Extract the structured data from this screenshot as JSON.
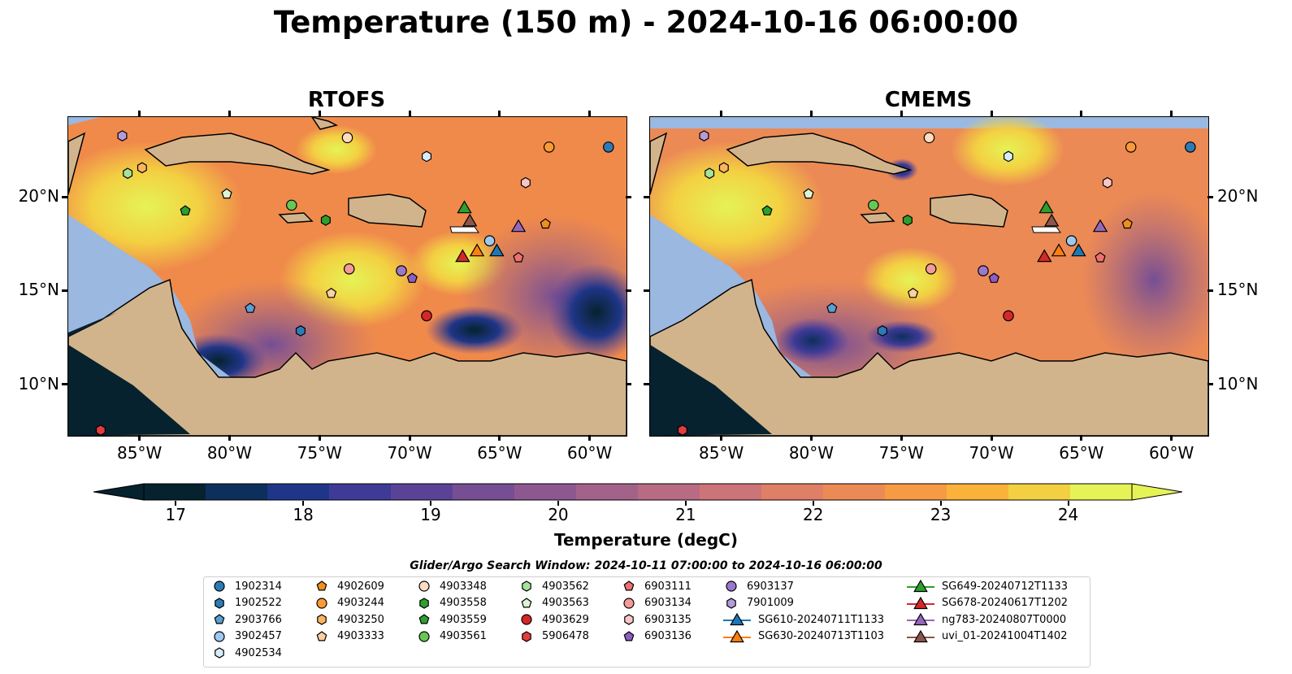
{
  "figure": {
    "title": "Temperature (150 m) - 2024-10-16 06:00:00",
    "panels": [
      {
        "title": "RTOFS"
      },
      {
        "title": "CMEMS"
      }
    ],
    "lon_ticks": [
      "85°W",
      "80°W",
      "75°W",
      "70°W",
      "65°W",
      "60°W"
    ],
    "lat_ticks": [
      "20°N",
      "15°N",
      "10°N"
    ],
    "extent": {
      "lon": [
        -89,
        -58
      ],
      "lat": [
        7.3,
        24.3
      ]
    },
    "land_color": "#d2b48c",
    "shallow_color": "#9ab8e0"
  },
  "colorbar": {
    "label": "Temperature (degC)",
    "ticks": [
      "17",
      "18",
      "19",
      "20",
      "21",
      "22",
      "23",
      "24"
    ],
    "range": [
      16.75,
      24.5
    ],
    "step": 0.5,
    "colors": [
      "#06222e",
      "#0d2f5c",
      "#1f3688",
      "#3e3a96",
      "#5a4397",
      "#754e94",
      "#8d5890",
      "#a3628a",
      "#b86b82",
      "#cc7478",
      "#df7f66",
      "#ec8a55",
      "#f69a44",
      "#fbb23a",
      "#f3d042",
      "#e5f356"
    ],
    "extend": "both"
  },
  "legend": {
    "title": "Glider/Argo Search Window: 2024-10-11 07:00:00 to 2024-10-16 06:00:00",
    "columns": [
      [
        {
          "label": "1902314",
          "marker": "circle",
          "color": "#2d7bb6"
        },
        {
          "label": "1902522",
          "marker": "hexagon",
          "color": "#2d7bb6"
        },
        {
          "label": "2903766",
          "marker": "pentagon",
          "color": "#5a9fd4"
        },
        {
          "label": "3902457",
          "marker": "circle",
          "color": "#9dc9ef"
        },
        {
          "label": "4902534",
          "marker": "hexagon",
          "color": "#d7ebfa"
        }
      ],
      [
        {
          "label": "4902609",
          "marker": "pentagon",
          "color": "#f28e1c"
        },
        {
          "label": "4903244",
          "marker": "circle",
          "color": "#fb9a35"
        },
        {
          "label": "4903250",
          "marker": "hexagon",
          "color": "#fdb45f"
        },
        {
          "label": "4903333",
          "marker": "pentagon",
          "color": "#fdd0a0"
        }
      ],
      [
        {
          "label": "4903348",
          "marker": "circle",
          "color": "#ffdcc0"
        },
        {
          "label": "4903558",
          "marker": "hexagon",
          "color": "#2ca02c"
        },
        {
          "label": "4903559",
          "marker": "pentagon",
          "color": "#2ca02c"
        },
        {
          "label": "4903561",
          "marker": "circle",
          "color": "#67c756"
        }
      ],
      [
        {
          "label": "4903562",
          "marker": "hexagon",
          "color": "#a7e29a"
        },
        {
          "label": "4903563",
          "marker": "pentagon",
          "color": "#dcf5d5"
        },
        {
          "label": "4903629",
          "marker": "circle",
          "color": "#d62728"
        },
        {
          "label": "5906478",
          "marker": "hexagon",
          "color": "#e23c3c"
        }
      ],
      [
        {
          "label": "6903111",
          "marker": "pentagon",
          "color": "#ee7070"
        },
        {
          "label": "6903134",
          "marker": "circle",
          "color": "#f59a9a"
        },
        {
          "label": "6903135",
          "marker": "hexagon",
          "color": "#f9c6c6"
        },
        {
          "label": "6903136",
          "marker": "pentagon",
          "color": "#8a5ec2"
        }
      ],
      [
        {
          "label": "6903137",
          "marker": "circle",
          "color": "#9b78cc"
        },
        {
          "label": "7901009",
          "marker": "hexagon",
          "color": "#b79ad8"
        },
        {
          "label": "SG610-20240711T1133",
          "marker": "triangle-line",
          "color": "#1f77b4"
        },
        {
          "label": "SG630-20240713T1103",
          "marker": "triangle-line",
          "color": "#ff7f0e"
        }
      ],
      [
        {
          "label": "SG649-20240712T1133",
          "marker": "triangle-line",
          "color": "#2ca02c"
        },
        {
          "label": "SG678-20240617T1202",
          "marker": "triangle-line",
          "color": "#d62728"
        },
        {
          "label": "ng783-20240807T0000",
          "marker": "triangle-line",
          "color": "#9467bd"
        },
        {
          "label": "uvi_01-20241004T1402",
          "marker": "triangle-line",
          "color": "#8c564b"
        }
      ]
    ]
  },
  "observations": [
    {
      "id": "1902314",
      "lon": -59.0,
      "lat": 22.7
    },
    {
      "id": "1902522",
      "lon": -76.1,
      "lat": 12.9
    },
    {
      "id": "2903766",
      "lon": -78.9,
      "lat": 14.1
    },
    {
      "id": "3902457",
      "lon": -65.6,
      "lat": 17.7
    },
    {
      "id": "4902534",
      "lon": -69.1,
      "lat": 22.2
    },
    {
      "id": "4902609",
      "lon": -62.5,
      "lat": 18.6
    },
    {
      "id": "4903244",
      "lon": -62.3,
      "lat": 22.7
    },
    {
      "id": "4903250",
      "lon": -84.9,
      "lat": 21.6
    },
    {
      "id": "4903333",
      "lon": -74.4,
      "lat": 14.9
    },
    {
      "id": "4903348",
      "lon": -73.5,
      "lat": 23.2
    },
    {
      "id": "4903558",
      "lon": -74.7,
      "lat": 18.8
    },
    {
      "id": "4903559",
      "lon": -82.5,
      "lat": 19.3
    },
    {
      "id": "4903561",
      "lon": -76.6,
      "lat": 19.6
    },
    {
      "id": "4903562",
      "lon": -85.7,
      "lat": 21.3
    },
    {
      "id": "4903563",
      "lon": -80.2,
      "lat": 20.2
    },
    {
      "id": "4903629",
      "lon": -69.1,
      "lat": 13.7
    },
    {
      "id": "5906478",
      "lon": -87.2,
      "lat": 7.6
    },
    {
      "id": "6903111",
      "lon": -64.0,
      "lat": 16.8
    },
    {
      "id": "6903134",
      "lon": -73.4,
      "lat": 16.2
    },
    {
      "id": "6903135",
      "lon": -63.6,
      "lat": 20.8
    },
    {
      "id": "6903136",
      "lon": -69.9,
      "lat": 15.7
    },
    {
      "id": "6903137",
      "lon": -70.5,
      "lat": 16.1
    },
    {
      "id": "7901009",
      "lon": -86.0,
      "lat": 23.3
    },
    {
      "id": "SG610-20240711T1133",
      "lon": -65.2,
      "lat": 17.1
    },
    {
      "id": "SG630-20240713T1103",
      "lon": -66.3,
      "lat": 17.1
    },
    {
      "id": "SG649-20240712T1133",
      "lon": -67.0,
      "lat": 19.4
    },
    {
      "id": "SG678-20240617T1202",
      "lon": -67.1,
      "lat": 16.8
    },
    {
      "id": "ng783-20240807T0000",
      "lon": -64.0,
      "lat": 18.4
    },
    {
      "id": "uvi_01-20241004T1402",
      "lon": -66.7,
      "lat": 18.7
    }
  ]
}
